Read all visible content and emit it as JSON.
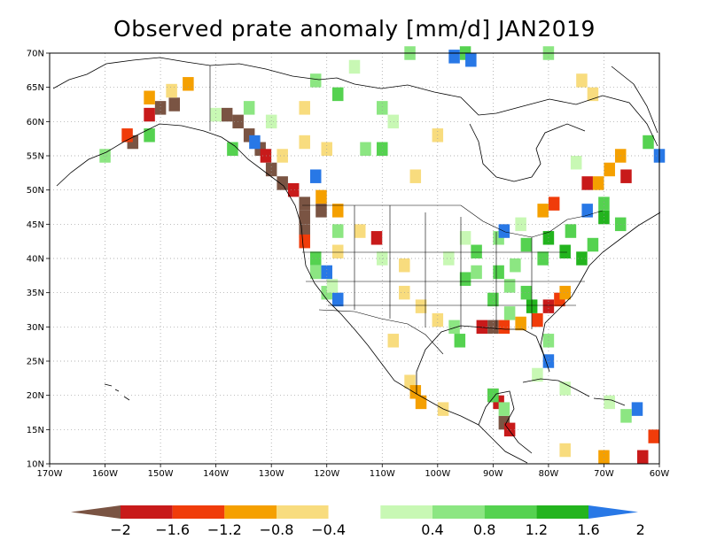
{
  "title": "Observed prate anomaly [mm/d] JAN2019",
  "map": {
    "lon_ticks": [
      "170W",
      "160W",
      "150W",
      "140W",
      "130W",
      "120W",
      "110W",
      "100W",
      "90W",
      "80W",
      "70W",
      "60W"
    ],
    "lat_ticks": [
      "10N",
      "15N",
      "20N",
      "25N",
      "30N",
      "35N",
      "40N",
      "45N",
      "50N",
      "55N",
      "60N",
      "65N",
      "70N"
    ],
    "lon_range": [
      -170,
      -60
    ],
    "lat_range": [
      10,
      70
    ],
    "grid": "dotted"
  },
  "colorbar": {
    "labels": [
      "-2",
      "-1.6",
      "-1.2",
      "-0.8",
      "-0.4",
      "0.4",
      "0.8",
      "1.2",
      "1.6",
      "2"
    ],
    "colors": [
      "#7a5443",
      "#c81a1a",
      "#f03c0a",
      "#f5a000",
      "#f8dc7e",
      "#ffffff",
      "#c8f8b4",
      "#8ce682",
      "#55d250",
      "#23b41e",
      "#2878e6"
    ]
  },
  "anomaly_cells": [
    {
      "lat": 62.5,
      "lon": -147.5,
      "c": "#7a5443"
    },
    {
      "lat": 62,
      "lon": -150,
      "c": "#7a5443"
    },
    {
      "lat": 61,
      "lon": -152,
      "c": "#c81a1a"
    },
    {
      "lat": 63.5,
      "lon": -152,
      "c": "#f5a000"
    },
    {
      "lat": 64.5,
      "lon": -148,
      "c": "#f8dc7e"
    },
    {
      "lat": 65.5,
      "lon": -145,
      "c": "#f5a000"
    },
    {
      "lat": 57,
      "lon": -155,
      "c": "#7a5443"
    },
    {
      "lat": 58,
      "lon": -156,
      "c": "#f03c0a"
    },
    {
      "lat": 61,
      "lon": -138,
      "c": "#7a5443"
    },
    {
      "lat": 60,
      "lon": -136,
      "c": "#7a5443"
    },
    {
      "lat": 58,
      "lon": -134,
      "c": "#7a5443"
    },
    {
      "lat": 56,
      "lon": -132,
      "c": "#7a5443"
    },
    {
      "lat": 55,
      "lon": -131,
      "c": "#c81a1a"
    },
    {
      "lat": 53,
      "lon": -130,
      "c": "#7a5443"
    },
    {
      "lat": 51,
      "lon": -128,
      "c": "#7a5443"
    },
    {
      "lat": 50,
      "lon": -126,
      "c": "#c81a1a"
    },
    {
      "lat": 48,
      "lon": -124,
      "c": "#7a5443"
    },
    {
      "lat": 46,
      "lon": -124,
      "c": "#7a5443"
    },
    {
      "lat": 44,
      "lon": -124,
      "c": "#7a5443"
    },
    {
      "lat": 42.5,
      "lon": -124,
      "c": "#f03c0a"
    },
    {
      "lat": 47,
      "lon": -121,
      "c": "#7a5443"
    },
    {
      "lat": 49,
      "lon": -121,
      "c": "#f5a000"
    },
    {
      "lat": 47,
      "lon": -118,
      "c": "#f5a000"
    },
    {
      "lat": 55,
      "lon": -128,
      "c": "#f8dc7e"
    },
    {
      "lat": 57,
      "lon": -124,
      "c": "#f8dc7e"
    },
    {
      "lat": 56,
      "lon": -120,
      "c": "#f8dc7e"
    },
    {
      "lat": 52,
      "lon": -122,
      "c": "#2878e6"
    },
    {
      "lat": 57,
      "lon": -133,
      "c": "#2878e6"
    },
    {
      "lat": 44,
      "lon": -114,
      "c": "#f8dc7e"
    },
    {
      "lat": 43,
      "lon": -111,
      "c": "#c81a1a"
    },
    {
      "lat": 41,
      "lon": -118,
      "c": "#f8dc7e"
    },
    {
      "lat": 39,
      "lon": -106,
      "c": "#f8dc7e"
    },
    {
      "lat": 35,
      "lon": -106,
      "c": "#f8dc7e"
    },
    {
      "lat": 33,
      "lon": -103,
      "c": "#f8dc7e"
    },
    {
      "lat": 31,
      "lon": -100,
      "c": "#f8dc7e"
    },
    {
      "lat": 28,
      "lon": -108,
      "c": "#f8dc7e"
    },
    {
      "lat": 22,
      "lon": -105,
      "c": "#f8dc7e"
    },
    {
      "lat": 20.5,
      "lon": -104,
      "c": "#f5a000"
    },
    {
      "lat": 19,
      "lon": -103,
      "c": "#f5a000"
    },
    {
      "lat": 18,
      "lon": -99,
      "c": "#f8dc7e"
    },
    {
      "lat": 30,
      "lon": -92,
      "c": "#c81a1a"
    },
    {
      "lat": 30,
      "lon": -90,
      "c": "#7a5443"
    },
    {
      "lat": 30,
      "lon": -88,
      "c": "#f03c0a"
    },
    {
      "lat": 30.5,
      "lon": -85,
      "c": "#f5a000"
    },
    {
      "lat": 31,
      "lon": -82,
      "c": "#f03c0a"
    },
    {
      "lat": 33,
      "lon": -80,
      "c": "#c81a1a"
    },
    {
      "lat": 34,
      "lon": -78,
      "c": "#f03c0a"
    },
    {
      "lat": 35,
      "lon": -77,
      "c": "#f5a000"
    },
    {
      "lat": 20,
      "lon": -90,
      "c": "#7a5443"
    },
    {
      "lat": 19,
      "lon": -89,
      "c": "#c81a1a"
    },
    {
      "lat": 16,
      "lon": -88,
      "c": "#7a5443"
    },
    {
      "lat": 15,
      "lon": -87,
      "c": "#c81a1a"
    },
    {
      "lat": 51,
      "lon": -73,
      "c": "#c81a1a"
    },
    {
      "lat": 51,
      "lon": -71,
      "c": "#f5a000"
    },
    {
      "lat": 53,
      "lon": -69,
      "c": "#f5a000"
    },
    {
      "lat": 55,
      "lon": -67,
      "c": "#f5a000"
    },
    {
      "lat": 52,
      "lon": -66,
      "c": "#c81a1a"
    },
    {
      "lat": 48,
      "lon": -79,
      "c": "#f03c0a"
    },
    {
      "lat": 47,
      "lon": -81,
      "c": "#f5a000"
    },
    {
      "lat": 66,
      "lon": -74,
      "c": "#f8dc7e"
    },
    {
      "lat": 64,
      "lon": -72,
      "c": "#f8dc7e"
    },
    {
      "lat": 58,
      "lon": -100,
      "c": "#f8dc7e"
    },
    {
      "lat": 62,
      "lon": -124,
      "c": "#f8dc7e"
    },
    {
      "lat": 52,
      "lon": -104,
      "c": "#f8dc7e"
    },
    {
      "lat": 14,
      "lon": -61,
      "c": "#f03c0a"
    },
    {
      "lat": 11,
      "lon": -63,
      "c": "#c81a1a"
    },
    {
      "lat": 11,
      "lon": -70,
      "c": "#f5a000"
    },
    {
      "lat": 12,
      "lon": -77,
      "c": "#f8dc7e"
    },
    {
      "lat": 70,
      "lon": -95,
      "c": "#55d250"
    },
    {
      "lat": 69.5,
      "lon": -97,
      "c": "#2878e6"
    },
    {
      "lat": 69,
      "lon": -94,
      "c": "#2878e6"
    },
    {
      "lat": 70,
      "lon": -105,
      "c": "#8ce682"
    },
    {
      "lat": 70,
      "lon": -80,
      "c": "#8ce682"
    },
    {
      "lat": 68,
      "lon": -115,
      "c": "#c8f8b4"
    },
    {
      "lat": 66,
      "lon": -122,
      "c": "#8ce682"
    },
    {
      "lat": 64,
      "lon": -118,
      "c": "#55d250"
    },
    {
      "lat": 62,
      "lon": -110,
      "c": "#8ce682"
    },
    {
      "lat": 60,
      "lon": -108,
      "c": "#c8f8b4"
    },
    {
      "lat": 56,
      "lon": -113,
      "c": "#8ce682"
    },
    {
      "lat": 56,
      "lon": -110,
      "c": "#55d250"
    },
    {
      "lat": 62,
      "lon": -134,
      "c": "#8ce682"
    },
    {
      "lat": 60,
      "lon": -130,
      "c": "#c8f8b4"
    },
    {
      "lat": 54,
      "lon": -75,
      "c": "#c8f8b4"
    },
    {
      "lat": 57,
      "lon": -62,
      "c": "#55d250"
    },
    {
      "lat": 55,
      "lon": -60,
      "c": "#2878e6"
    },
    {
      "lat": 47,
      "lon": -73,
      "c": "#2878e6"
    },
    {
      "lat": 46,
      "lon": -70,
      "c": "#23b41e"
    },
    {
      "lat": 48,
      "lon": -70,
      "c": "#55d250"
    },
    {
      "lat": 45,
      "lon": -67,
      "c": "#55d250"
    },
    {
      "lat": 44,
      "lon": -76,
      "c": "#55d250"
    },
    {
      "lat": 43,
      "lon": -80,
      "c": "#23b41e"
    },
    {
      "lat": 42,
      "lon": -84,
      "c": "#55d250"
    },
    {
      "lat": 41,
      "lon": -77,
      "c": "#23b41e"
    },
    {
      "lat": 40,
      "lon": -81,
      "c": "#55d250"
    },
    {
      "lat": 39,
      "lon": -86,
      "c": "#8ce682"
    },
    {
      "lat": 38,
      "lon": -89,
      "c": "#55d250"
    },
    {
      "lat": 36,
      "lon": -87,
      "c": "#8ce682"
    },
    {
      "lat": 35,
      "lon": -84,
      "c": "#55d250"
    },
    {
      "lat": 34,
      "lon": -90,
      "c": "#55d250"
    },
    {
      "lat": 32,
      "lon": -87,
      "c": "#8ce682"
    },
    {
      "lat": 33,
      "lon": -83,
      "c": "#23b41e"
    },
    {
      "lat": 41,
      "lon": -93,
      "c": "#55d250"
    },
    {
      "lat": 38,
      "lon": -93,
      "c": "#8ce682"
    },
    {
      "lat": 43,
      "lon": -95,
      "c": "#c8f8b4"
    },
    {
      "lat": 37,
      "lon": -95,
      "c": "#55d250"
    },
    {
      "lat": 40,
      "lon": -98,
      "c": "#c8f8b4"
    },
    {
      "lat": 43,
      "lon": -89,
      "c": "#8ce682"
    },
    {
      "lat": 45,
      "lon": -85,
      "c": "#c8f8b4"
    },
    {
      "lat": 42,
      "lon": -72,
      "c": "#55d250"
    },
    {
      "lat": 40,
      "lon": -74,
      "c": "#23b41e"
    },
    {
      "lat": 44,
      "lon": -88,
      "c": "#2878e6"
    },
    {
      "lat": 40,
      "lon": -122,
      "c": "#55d250"
    },
    {
      "lat": 38,
      "lon": -122,
      "c": "#8ce682"
    },
    {
      "lat": 35,
      "lon": -120,
      "c": "#8ce682"
    },
    {
      "lat": 34,
      "lon": -118,
      "c": "#2878e6"
    },
    {
      "lat": 36,
      "lon": -119,
      "c": "#c8f8b4"
    },
    {
      "lat": 38,
      "lon": -120,
      "c": "#2878e6"
    },
    {
      "lat": 44,
      "lon": -118,
      "c": "#8ce682"
    },
    {
      "lat": 40,
      "lon": -110,
      "c": "#c8f8b4"
    },
    {
      "lat": 20,
      "lon": -90,
      "c": "#55d250"
    },
    {
      "lat": 18,
      "lon": -88,
      "c": "#8ce682"
    },
    {
      "lat": 23,
      "lon": -82,
      "c": "#c8f8b4"
    },
    {
      "lat": 21,
      "lon": -77,
      "c": "#c8f8b4"
    },
    {
      "lat": 25,
      "lon": -80,
      "c": "#2878e6"
    },
    {
      "lat": 28,
      "lon": -80,
      "c": "#8ce682"
    },
    {
      "lat": 30,
      "lon": -97,
      "c": "#8ce682"
    },
    {
      "lat": 28,
      "lon": -96,
      "c": "#55d250"
    },
    {
      "lat": 18,
      "lon": -64,
      "c": "#2878e6"
    },
    {
      "lat": 17,
      "lon": -66,
      "c": "#8ce682"
    },
    {
      "lat": 19,
      "lon": -69,
      "c": "#c8f8b4"
    },
    {
      "lat": 55,
      "lon": -160,
      "c": "#8ce682"
    },
    {
      "lat": 58,
      "lon": -152,
      "c": "#55d250"
    },
    {
      "lat": 61,
      "lon": -140,
      "c": "#c8f8b4"
    },
    {
      "lat": 56,
      "lon": -137,
      "c": "#55d250"
    }
  ]
}
